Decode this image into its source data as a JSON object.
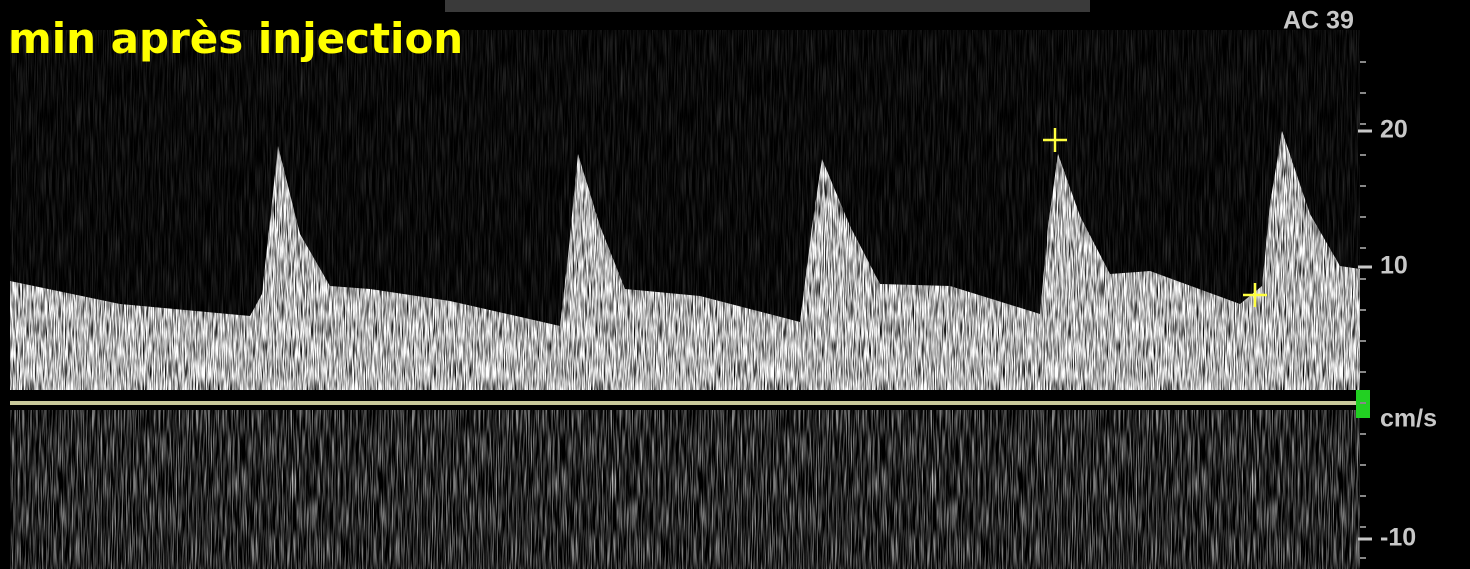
{
  "caption": "min après injection",
  "header": {
    "label": "AC 39"
  },
  "scale": {
    "ticks": [
      20,
      10,
      -10
    ],
    "unit": "cm/s"
  }
}
